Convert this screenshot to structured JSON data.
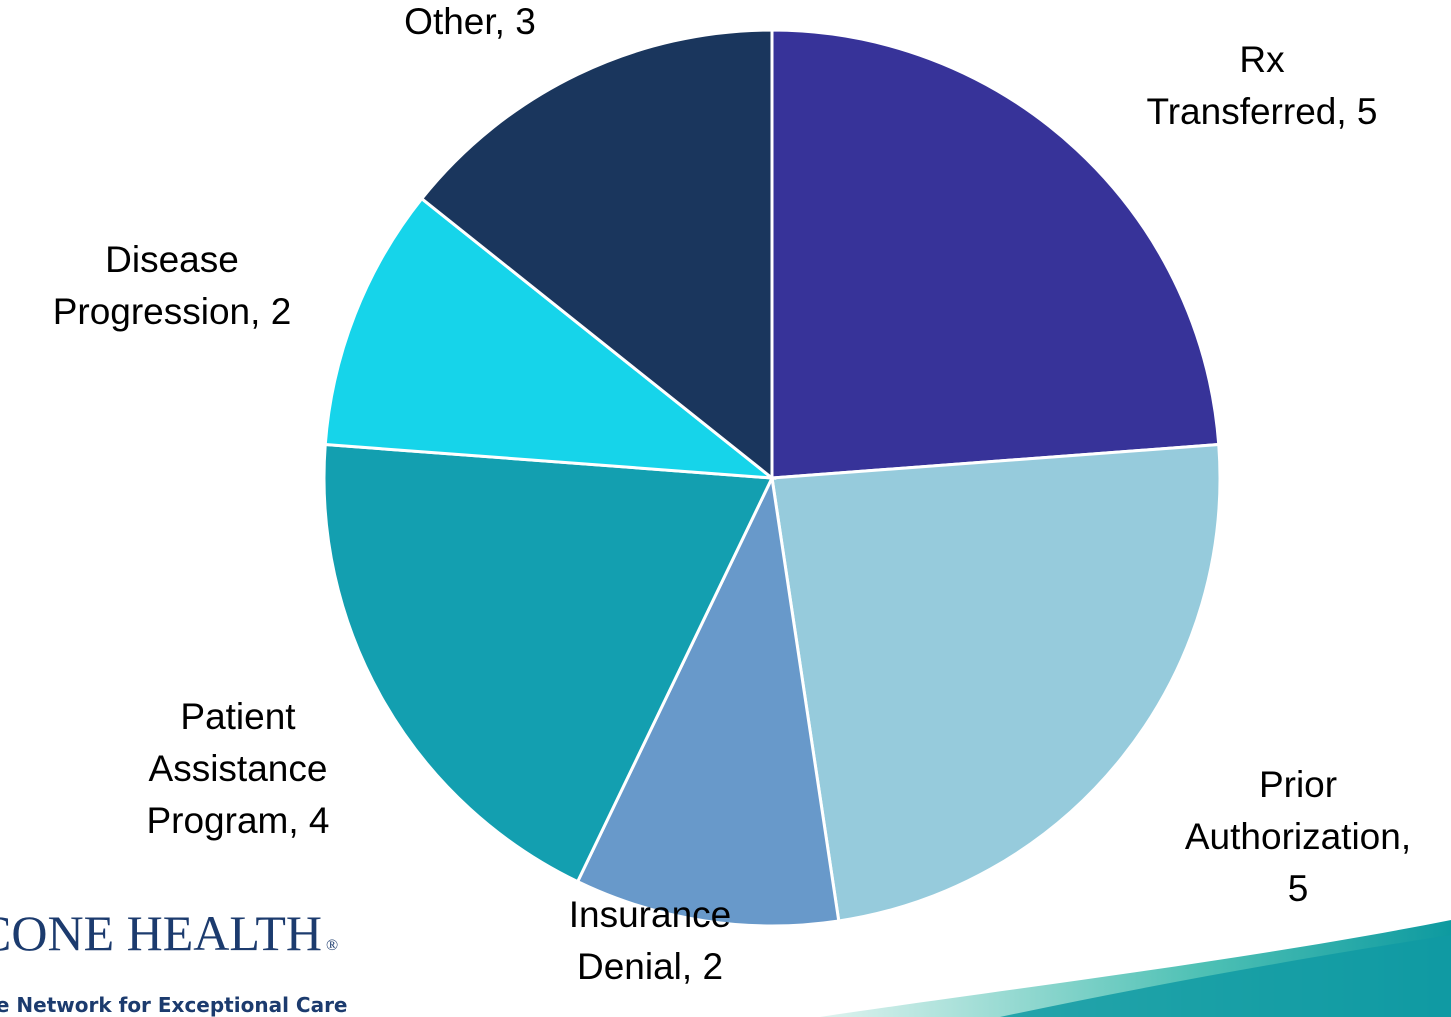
{
  "chart_data": {
    "type": "pie",
    "values": [
      5,
      5,
      2,
      4,
      2,
      3
    ],
    "value_labels": [
      "Rx Transferred, 5",
      "Prior Authorization, 5",
      "Insurance Denial, 2",
      "Patient Assistance Program, 4",
      "Disease Progression, 2",
      "Other, 3"
    ],
    "colors": [
      "#373399",
      "#96cbdc",
      "#6899ca",
      "#139fb0",
      "#16d4ea",
      "#1a365d"
    ]
  },
  "logo": {
    "name": "CONE HEALTH",
    "mark": "®",
    "tagline": "The Network for Exceptional Care"
  }
}
